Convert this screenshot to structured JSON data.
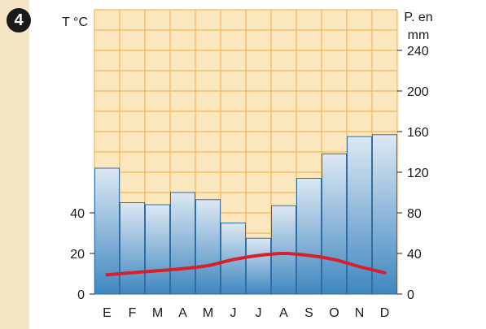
{
  "figure": {
    "badge": "4"
  },
  "chart_data": {
    "type": "bar+line",
    "categories": [
      "E",
      "F",
      "M",
      "A",
      "M",
      "J",
      "J",
      "A",
      "S",
      "O",
      "N",
      "D"
    ],
    "series": [
      {
        "axis": "right",
        "type": "bar",
        "values": [
          124,
          90,
          88,
          100,
          93,
          70,
          55,
          87,
          114,
          138,
          155,
          157
        ]
      },
      {
        "axis": "left",
        "type": "line",
        "values": [
          9.5,
          10.5,
          11.5,
          12.5,
          14,
          17,
          19,
          20,
          19,
          17,
          13.5,
          10.5
        ]
      }
    ],
    "left_axis": {
      "label": "T °C",
      "ticks": [
        "0",
        "20",
        "40"
      ],
      "tick_values": [
        0,
        20,
        40
      ],
      "range": [
        0,
        140
      ]
    },
    "right_axis": {
      "label_line1": "P. en",
      "label_line2": "mm",
      "ticks": [
        "0",
        "40",
        "80",
        "120",
        "160",
        "200",
        "240"
      ],
      "tick_values": [
        0,
        40,
        80,
        120,
        160,
        200,
        240
      ],
      "range": [
        0,
        280
      ]
    },
    "colors": {
      "plot_background": "#fbe7bd",
      "grid": "#f4b459",
      "bar_top": "#dde8f3",
      "bar_bottom": "#3f87c0",
      "bar_stroke": "#2f6fa6",
      "line": "#d8202a",
      "page_background": "#f6e6c6"
    }
  }
}
